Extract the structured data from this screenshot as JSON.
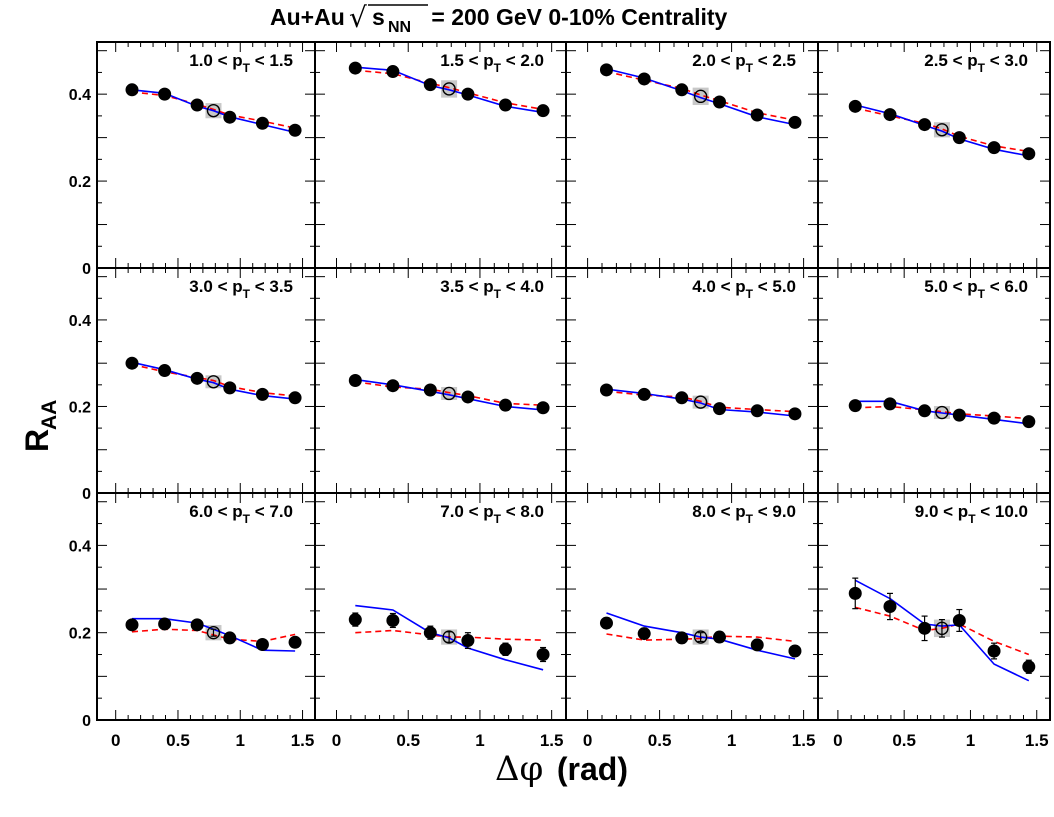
{
  "title": {
    "prefix": "Au+Au",
    "sqrt_symbol": "√",
    "s": "s",
    "s_sub": "NN",
    "suffix": " = 200 GeV 0-10% Centrality"
  },
  "axes": {
    "ylabel_main": "R",
    "ylabel_sub": "AA",
    "xlabel_symbol": "Δφ",
    "xlabel_unit": " (rad)"
  },
  "colors": {
    "line_solid": "#0000ff",
    "line_dashed": "#ff0000",
    "marker": "#000000",
    "syst_band": "#c8c8c8"
  },
  "chart_data": {
    "type": "scatter",
    "layout": "grid 3 rows x 4 columns, shared axes",
    "xlim": [
      -0.15,
      1.6
    ],
    "ylim": [
      0,
      0.52
    ],
    "xticks": [
      0,
      0.5,
      1,
      1.5
    ],
    "xtick_labels": [
      "0",
      "0.5",
      "1",
      "1.5"
    ],
    "yticks": [
      0,
      0.2,
      0.4
    ],
    "ytick_labels": [
      "0",
      "0.2",
      "0.4"
    ],
    "x": [
      0.131,
      0.393,
      0.654,
      0.785,
      0.916,
      1.178,
      1.44
    ],
    "open_marker_index": 3,
    "panels": [
      {
        "label": {
          "lo": "1.0",
          "hi": "1.5"
        },
        "y": [
          0.41,
          0.4,
          0.375,
          0.362,
          0.347,
          0.333,
          0.317
        ],
        "err": [
          0.002,
          0.002,
          0.002,
          0.002,
          0.002,
          0.002,
          0.002
        ],
        "syst": 0.035,
        "solid": [
          0.41,
          0.402,
          0.372,
          0.362,
          0.348,
          0.33,
          0.312
        ],
        "dashed": [
          0.405,
          0.397,
          0.377,
          0.365,
          0.352,
          0.338,
          0.322
        ]
      },
      {
        "label": {
          "lo": "1.5",
          "hi": "2.0"
        },
        "y": [
          0.46,
          0.452,
          0.422,
          0.412,
          0.4,
          0.375,
          0.362
        ],
        "err": [
          0.002,
          0.002,
          0.002,
          0.002,
          0.002,
          0.002,
          0.002
        ],
        "syst": 0.04,
        "solid": [
          0.462,
          0.455,
          0.42,
          0.41,
          0.398,
          0.372,
          0.358
        ],
        "dashed": [
          0.455,
          0.447,
          0.425,
          0.415,
          0.403,
          0.38,
          0.365
        ]
      },
      {
        "label": {
          "lo": "2.0",
          "hi": "2.5"
        },
        "y": [
          0.456,
          0.435,
          0.41,
          0.395,
          0.382,
          0.352,
          0.335
        ],
        "err": [
          0.002,
          0.002,
          0.002,
          0.002,
          0.002,
          0.002,
          0.002
        ],
        "syst": 0.04,
        "solid": [
          0.458,
          0.437,
          0.408,
          0.392,
          0.378,
          0.348,
          0.33
        ],
        "dashed": [
          0.452,
          0.432,
          0.413,
          0.398,
          0.385,
          0.357,
          0.34
        ]
      },
      {
        "label": {
          "lo": "2.5",
          "hi": "3.0"
        },
        "y": [
          0.372,
          0.353,
          0.33,
          0.318,
          0.3,
          0.277,
          0.263
        ],
        "err": [
          0.002,
          0.002,
          0.002,
          0.002,
          0.002,
          0.002,
          0.002
        ],
        "syst": 0.035,
        "solid": [
          0.375,
          0.355,
          0.328,
          0.315,
          0.297,
          0.273,
          0.258
        ],
        "dashed": [
          0.368,
          0.35,
          0.333,
          0.32,
          0.303,
          0.281,
          0.268
        ]
      },
      {
        "label": {
          "lo": "3.0",
          "hi": "3.5"
        },
        "y": [
          0.3,
          0.283,
          0.265,
          0.257,
          0.243,
          0.228,
          0.22
        ],
        "err": [
          0.002,
          0.002,
          0.002,
          0.002,
          0.002,
          0.002,
          0.002
        ],
        "syst": 0.03,
        "solid": [
          0.302,
          0.285,
          0.263,
          0.255,
          0.24,
          0.225,
          0.217
        ],
        "dashed": [
          0.297,
          0.28,
          0.267,
          0.26,
          0.246,
          0.232,
          0.224
        ]
      },
      {
        "label": {
          "lo": "3.5",
          "hi": "4.0"
        },
        "y": [
          0.26,
          0.248,
          0.238,
          0.23,
          0.222,
          0.203,
          0.197
        ],
        "err": [
          0.002,
          0.002,
          0.002,
          0.002,
          0.002,
          0.002,
          0.002
        ],
        "syst": 0.03,
        "solid": [
          0.262,
          0.25,
          0.235,
          0.227,
          0.218,
          0.2,
          0.192
        ],
        "dashed": [
          0.257,
          0.245,
          0.24,
          0.232,
          0.225,
          0.207,
          0.203
        ]
      },
      {
        "label": {
          "lo": "4.0",
          "hi": "5.0"
        },
        "y": [
          0.238,
          0.228,
          0.22,
          0.21,
          0.195,
          0.19,
          0.183
        ],
        "err": [
          0.002,
          0.002,
          0.002,
          0.002,
          0.002,
          0.002,
          0.002
        ],
        "syst": 0.03,
        "solid": [
          0.24,
          0.23,
          0.217,
          0.208,
          0.193,
          0.187,
          0.178
        ],
        "dashed": [
          0.235,
          0.226,
          0.222,
          0.212,
          0.198,
          0.193,
          0.188
        ]
      },
      {
        "label": {
          "lo": "5.0",
          "hi": "6.0"
        },
        "y": [
          0.202,
          0.206,
          0.19,
          0.186,
          0.18,
          0.173,
          0.165
        ],
        "err": [
          0.002,
          0.002,
          0.002,
          0.002,
          0.002,
          0.002,
          0.002
        ],
        "syst": 0.03,
        "solid": [
          0.212,
          0.212,
          0.19,
          0.185,
          0.18,
          0.17,
          0.16
        ],
        "dashed": [
          0.197,
          0.2,
          0.192,
          0.188,
          0.183,
          0.178,
          0.172
        ]
      },
      {
        "label": {
          "lo": "6.0",
          "hi": "7.0"
        },
        "y": [
          0.218,
          0.22,
          0.218,
          0.2,
          0.188,
          0.173,
          0.178
        ],
        "err": [
          0.01,
          0.01,
          0.012,
          0.008,
          0.01,
          0.008,
          0.01
        ],
        "syst": 0.035,
        "solid": [
          0.232,
          0.232,
          0.222,
          0.208,
          0.193,
          0.16,
          0.158
        ],
        "dashed": [
          0.202,
          0.208,
          0.205,
          0.195,
          0.185,
          0.18,
          0.196
        ]
      },
      {
        "label": {
          "lo": "7.0",
          "hi": "8.0"
        },
        "y": [
          0.23,
          0.228,
          0.2,
          0.19,
          0.182,
          0.162,
          0.15
        ],
        "err": [
          0.015,
          0.016,
          0.015,
          0.012,
          0.018,
          0.014,
          0.016
        ],
        "syst": 0.035,
        "solid": [
          0.262,
          0.252,
          0.2,
          0.188,
          0.165,
          0.138,
          0.115
        ],
        "dashed": [
          0.2,
          0.205,
          0.195,
          0.19,
          0.19,
          0.185,
          0.183
        ]
      },
      {
        "label": {
          "lo": "8.0",
          "hi": "9.0"
        },
        "y": [
          0.222,
          0.198,
          0.188,
          0.19,
          0.19,
          0.172,
          0.158
        ],
        "err": [
          0.012,
          0.012,
          0.012,
          0.01,
          0.012,
          0.01,
          0.012
        ],
        "syst": 0.035,
        "solid": [
          0.245,
          0.215,
          0.2,
          0.19,
          0.185,
          0.16,
          0.14
        ],
        "dashed": [
          0.197,
          0.183,
          0.185,
          0.187,
          0.192,
          0.19,
          0.18
        ]
      },
      {
        "label": {
          "lo": "9.0",
          "hi": "10.0"
        },
        "y": [
          0.29,
          0.26,
          0.21,
          0.21,
          0.228,
          0.158,
          0.122
        ],
        "err": [
          0.035,
          0.03,
          0.028,
          0.02,
          0.025,
          0.018,
          0.015
        ],
        "syst": 0.04,
        "solid": [
          0.32,
          0.278,
          0.22,
          0.215,
          0.218,
          0.128,
          0.09
        ],
        "dashed": [
          0.258,
          0.238,
          0.205,
          0.21,
          0.22,
          0.18,
          0.15
        ]
      }
    ]
  }
}
